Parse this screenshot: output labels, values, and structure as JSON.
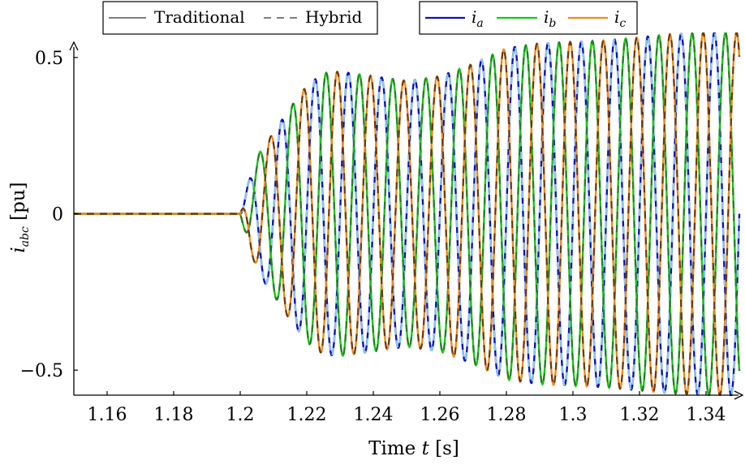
{
  "chart_data": {
    "type": "line",
    "title": "",
    "xlabel_prefix": "Time ",
    "xlabel_var": "t",
    "xlabel_unit": " [s]",
    "ylabel_var": "i",
    "ylabel_sub": "abc",
    "ylabel_unit": " [pu]",
    "xlim": [
      1.15,
      1.35
    ],
    "ylim": [
      -0.58,
      0.58
    ],
    "x_ticks": [
      1.16,
      1.18,
      1.2,
      1.22,
      1.24,
      1.26,
      1.28,
      1.3,
      1.32,
      1.34
    ],
    "x_tick_labels": [
      "1.16",
      "1.18",
      "1.2",
      "1.22",
      "1.24",
      "1.26",
      "1.28",
      "1.3",
      "1.32",
      "1.34"
    ],
    "y_ticks": [
      -0.5,
      0,
      0.5
    ],
    "y_tick_labels": [
      "−0.5",
      "0",
      "0.5"
    ],
    "grid": false,
    "fault_time": 1.2,
    "frequency_hz": 100,
    "envelope": {
      "t": [
        1.2,
        1.203,
        1.206,
        1.21,
        1.215,
        1.22,
        1.225,
        1.23,
        1.24,
        1.25,
        1.26,
        1.27,
        1.28,
        1.29,
        1.3,
        1.31,
        1.32,
        1.33,
        1.34,
        1.35
      ],
      "amp": [
        0,
        0.12,
        0.2,
        0.26,
        0.34,
        0.41,
        0.45,
        0.455,
        0.44,
        0.425,
        0.44,
        0.48,
        0.53,
        0.545,
        0.55,
        0.555,
        0.565,
        0.575,
        0.58,
        0.58
      ]
    },
    "series": [
      {
        "name": "i_a",
        "label_var": "i",
        "label_sub": "a",
        "phase_deg": 0,
        "color": "#0a14b4",
        "hybrid_color": "#8ec7f0"
      },
      {
        "name": "i_b",
        "label_var": "i",
        "label_sub": "b",
        "phase_deg": -120,
        "color": "#16c816",
        "hybrid_color": "#2a7a2a"
      },
      {
        "name": "i_c",
        "label_var": "i",
        "label_sub": "c",
        "phase_deg": 120,
        "color": "#f08a1a",
        "hybrid_color": "#6a3a10"
      }
    ],
    "legend_styles": {
      "position": "top",
      "traditional": "Traditional",
      "hybrid": "Hybrid",
      "style_color": "#808080"
    }
  }
}
